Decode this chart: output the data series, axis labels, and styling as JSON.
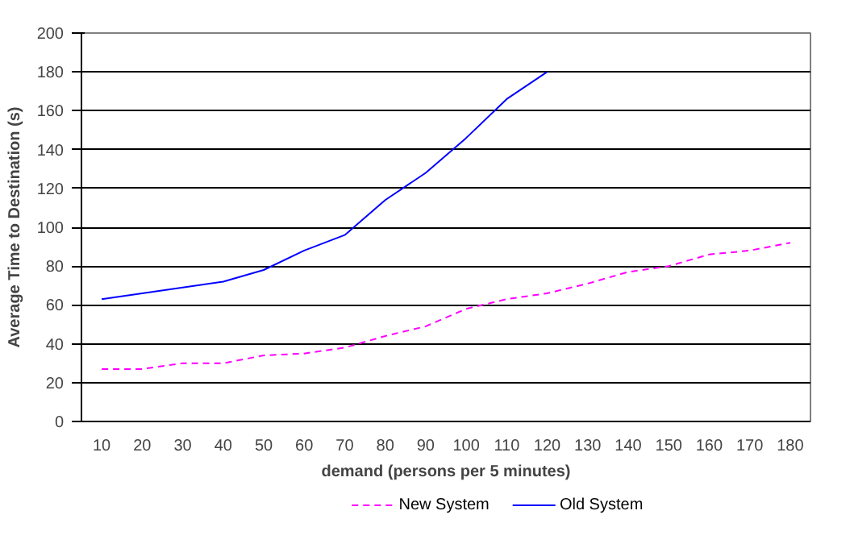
{
  "chart_data": {
    "type": "line",
    "xlabel": "demand (persons per 5 minutes)",
    "ylabel": "Average Time to Destination (s)",
    "categories": [
      "10",
      "20",
      "30",
      "40",
      "50",
      "60",
      "70",
      "80",
      "90",
      "100",
      "110",
      "120",
      "130",
      "140",
      "150",
      "160",
      "170",
      "180"
    ],
    "series": [
      {
        "name": "New System",
        "color": "#ff00ff",
        "line_style": "dashed",
        "values": [
          27,
          27,
          30,
          30,
          34,
          35,
          38,
          44,
          49,
          58,
          63,
          66,
          71,
          77,
          80,
          86,
          88,
          92
        ]
      },
      {
        "name": "Old System",
        "color": "#0000ff",
        "line_style": "solid",
        "values": [
          63,
          66,
          69,
          72,
          78,
          88,
          96,
          114,
          128,
          146,
          166,
          180,
          null,
          null,
          null,
          null,
          null,
          null
        ]
      }
    ],
    "ylim": [
      0,
      200
    ],
    "yticks": [
      0,
      20,
      40,
      60,
      80,
      100,
      120,
      140,
      160,
      180,
      200
    ],
    "grid": "y",
    "legend": "bottom",
    "marker": "none"
  }
}
